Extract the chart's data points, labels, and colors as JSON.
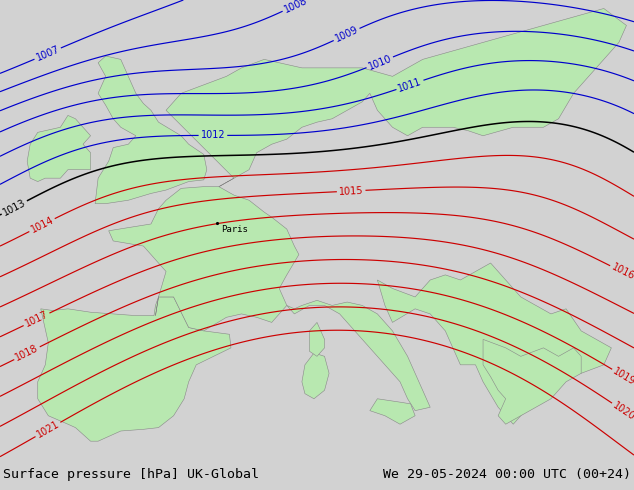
{
  "title_left": "Surface pressure [hPa] UK-Global",
  "title_right": "We 29-05-2024 00:00 UTC (00+24)",
  "title_fontsize": 9.5,
  "title_color": "#000000",
  "sea_color": "#d2d2d2",
  "land_color": "#b8e8b0",
  "contour_color_red": "#cc0000",
  "contour_color_blue": "#0000cc",
  "contour_color_black": "#000000",
  "label_fontsize": 7,
  "paris_label": "Paris",
  "paris_lon": 2.35,
  "paris_lat": 48.85,
  "lon_min": -12.0,
  "lon_max": 30.0,
  "lat_min": 35.0,
  "lat_max": 62.0,
  "footer_color": "#ffffff"
}
